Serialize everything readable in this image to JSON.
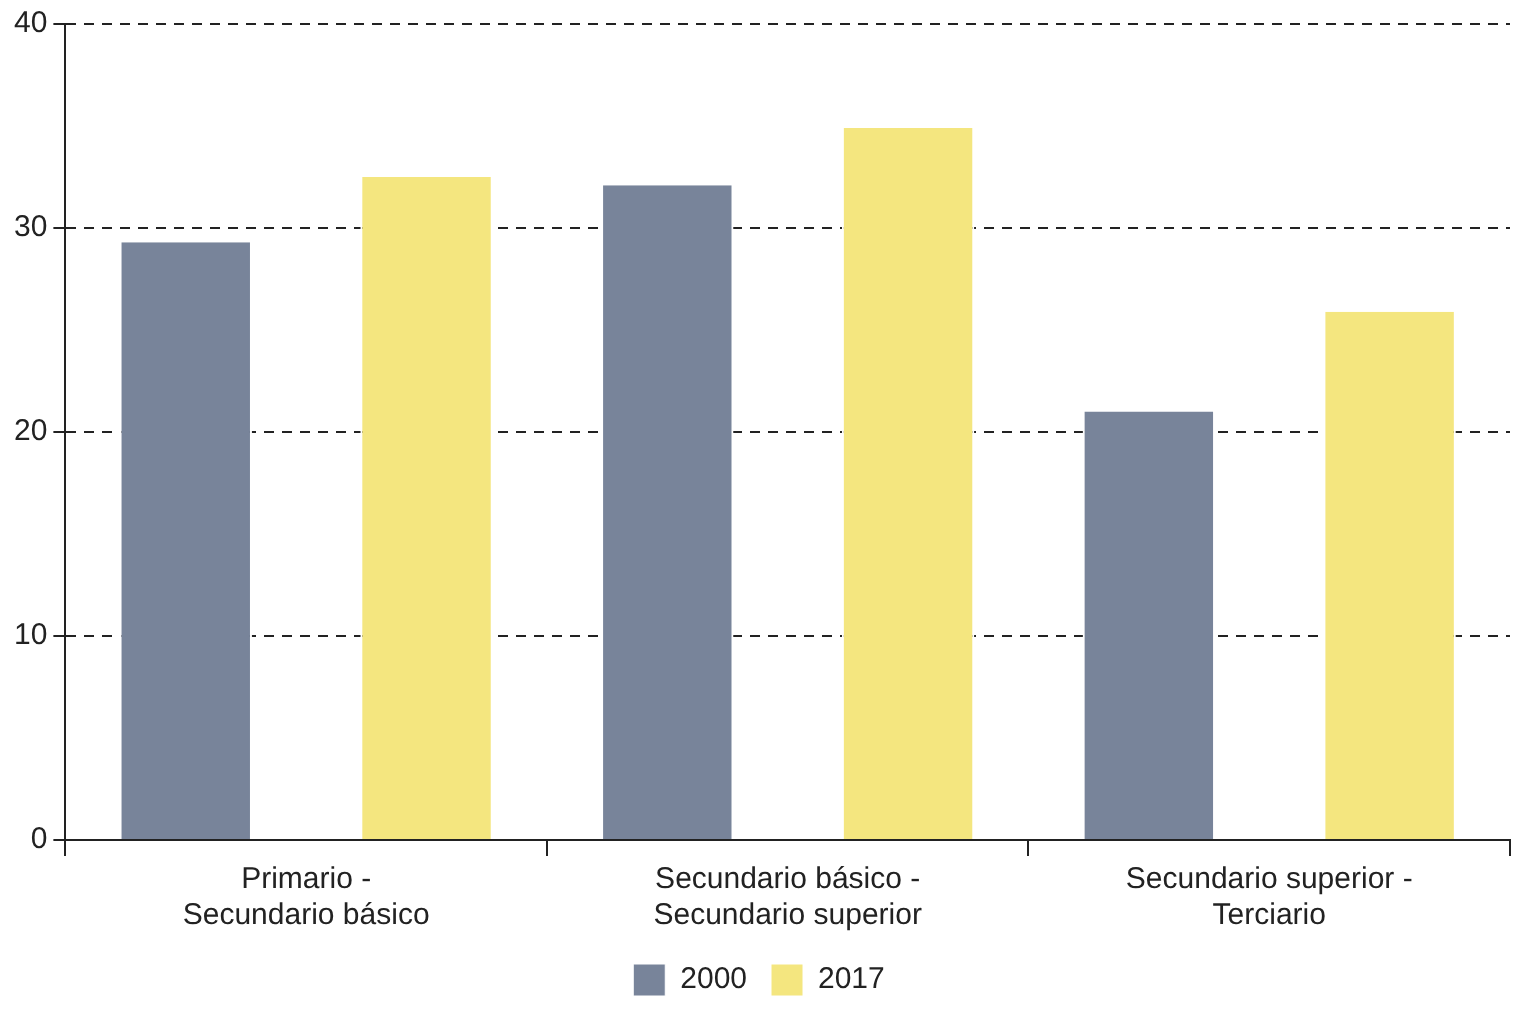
{
  "chart_data": {
    "type": "bar",
    "categories": [
      "Primario - Secundario básico",
      "Secundario básico - Secundario superior",
      "Secundario superior - Terciario"
    ],
    "series": [
      {
        "name": "2000",
        "color": "#78849a",
        "values": [
          29.3,
          32.1,
          21.0
        ]
      },
      {
        "name": "2017",
        "color": "#f4e67f",
        "values": [
          32.5,
          34.9,
          25.9
        ]
      }
    ],
    "ylim": [
      0,
      40
    ],
    "yticks": [
      0,
      10,
      20,
      30,
      40
    ],
    "grid": "y",
    "legend": "bottom"
  }
}
